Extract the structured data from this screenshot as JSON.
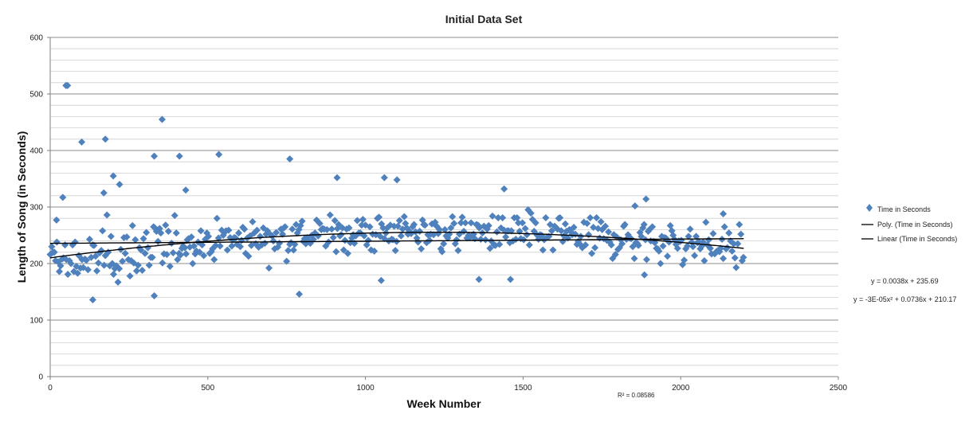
{
  "chart_data": {
    "type": "scatter",
    "title": "Initial Data Set",
    "xlabel": "Week Number",
    "ylabel": "Length of Song (in Seconds)",
    "xlim": [
      0,
      2500
    ],
    "ylim": [
      0,
      600
    ],
    "x_ticks": [
      "0",
      "500",
      "1000",
      "1500",
      "2000",
      "2500"
    ],
    "y_ticks": [
      "0",
      "100",
      "200",
      "300",
      "400",
      "500",
      "600"
    ],
    "y_major_step": 100,
    "y_minor_step": 20,
    "grid": true,
    "legend_position": "right",
    "marker_color": "#4F81BD",
    "trendline_color": "#000000",
    "series": [
      {
        "name": "Time in Seconds",
        "marker": "diamond",
        "outliers": [
          [
            50,
            515
          ],
          [
            55,
            515
          ],
          [
            100,
            415
          ],
          [
            175,
            420
          ],
          [
            200,
            355
          ],
          [
            220,
            340
          ],
          [
            330,
            390
          ],
          [
            355,
            455
          ],
          [
            410,
            390
          ],
          [
            535,
            393
          ],
          [
            760,
            385
          ],
          [
            790,
            146
          ],
          [
            330,
            143
          ],
          [
            135,
            136
          ],
          [
            40,
            317
          ],
          [
            20,
            277
          ],
          [
            170,
            325
          ],
          [
            430,
            330
          ],
          [
            910,
            352
          ],
          [
            1060,
            352
          ],
          [
            1100,
            348
          ],
          [
            1440,
            332
          ],
          [
            1890,
            314
          ],
          [
            1855,
            302
          ],
          [
            2135,
            288
          ],
          [
            1460,
            172
          ],
          [
            1360,
            172
          ],
          [
            1050,
            170
          ],
          [
            1885,
            180
          ]
        ]
      }
    ],
    "trendlines": [
      {
        "name": "Poly. (Time in Seconds)",
        "kind": "polynomial",
        "coefficients": [
          210.17,
          0.0736,
          -3e-05
        ],
        "x_range": [
          0,
          2200
        ]
      },
      {
        "name": "Linear (Time in Seconds)",
        "kind": "linear",
        "coefficients": [
          235.69,
          0.0038
        ],
        "x_range": [
          0,
          2200
        ]
      }
    ],
    "annotations": {
      "linear_equation": "y = 0.0038x + 235.69",
      "poly_equation": "y = -3E-05x² + 0.0736x + 210.17",
      "r_squared": "R² = 0.08586"
    }
  }
}
